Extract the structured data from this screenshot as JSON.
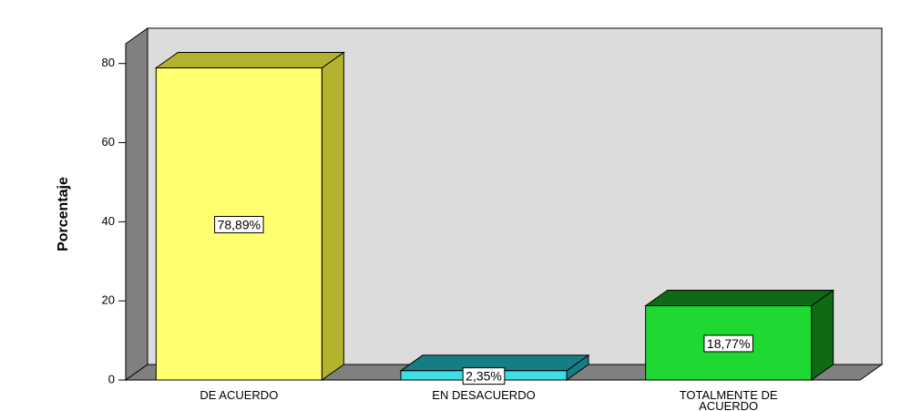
{
  "chart_data": {
    "type": "bar3d",
    "y_label": "Porcentaje",
    "categories": [
      "DE ACUERDO",
      "EN DESACUERDO",
      "TOTALMENTE DE ACUERDO"
    ],
    "values": [
      78.89,
      2.35,
      18.77
    ],
    "value_labels": [
      "78,89%",
      "2,35%",
      "18,77%"
    ],
    "colors": [
      "#ffff70",
      "#3ee0e6",
      "#1fd832"
    ],
    "shade_colors": [
      "#b3b32e",
      "#177d84",
      "#0f6a16"
    ],
    "ylim": [
      0,
      85
    ],
    "yticks": [
      0,
      20,
      40,
      60,
      80
    ],
    "grid": false
  }
}
